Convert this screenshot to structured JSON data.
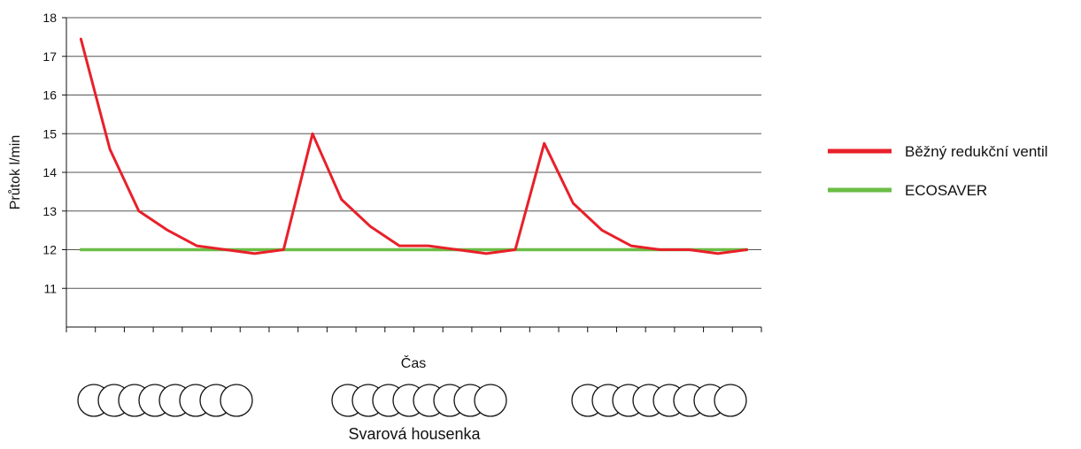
{
  "chart_data": {
    "type": "line",
    "title": "",
    "xlabel": "Čas",
    "ylabel": "Průtok l/min",
    "ylim": [
      10,
      18
    ],
    "yticks": [
      11,
      12,
      13,
      14,
      15,
      16,
      17,
      18
    ],
    "grid": true,
    "legend_position": "right",
    "x": [
      1,
      2,
      3,
      4,
      5,
      6,
      7,
      8,
      9,
      10,
      11,
      12,
      13,
      14,
      15,
      16,
      17,
      18,
      19,
      20,
      21,
      22,
      23,
      24
    ],
    "series": [
      {
        "name": "Běžný redukční ventil",
        "color": "#e8202a",
        "values": [
          17.45,
          14.6,
          13.0,
          12.5,
          12.1,
          12.0,
          11.9,
          12.0,
          15.0,
          13.3,
          12.6,
          12.1,
          12.1,
          12.0,
          11.9,
          12.0,
          14.75,
          13.2,
          12.5,
          12.1,
          12.0,
          12.0,
          11.9,
          12.0
        ]
      },
      {
        "name": "ECOSAVER",
        "color": "#6abd45",
        "values": [
          12,
          12,
          12,
          12,
          12,
          12,
          12,
          12,
          12,
          12,
          12,
          12,
          12,
          12,
          12,
          12,
          12,
          12,
          12,
          12,
          12,
          12,
          12,
          12
        ]
      }
    ],
    "bead_label": "Svarová housenka",
    "bead_groups": 3,
    "beads_per_group": 8
  }
}
